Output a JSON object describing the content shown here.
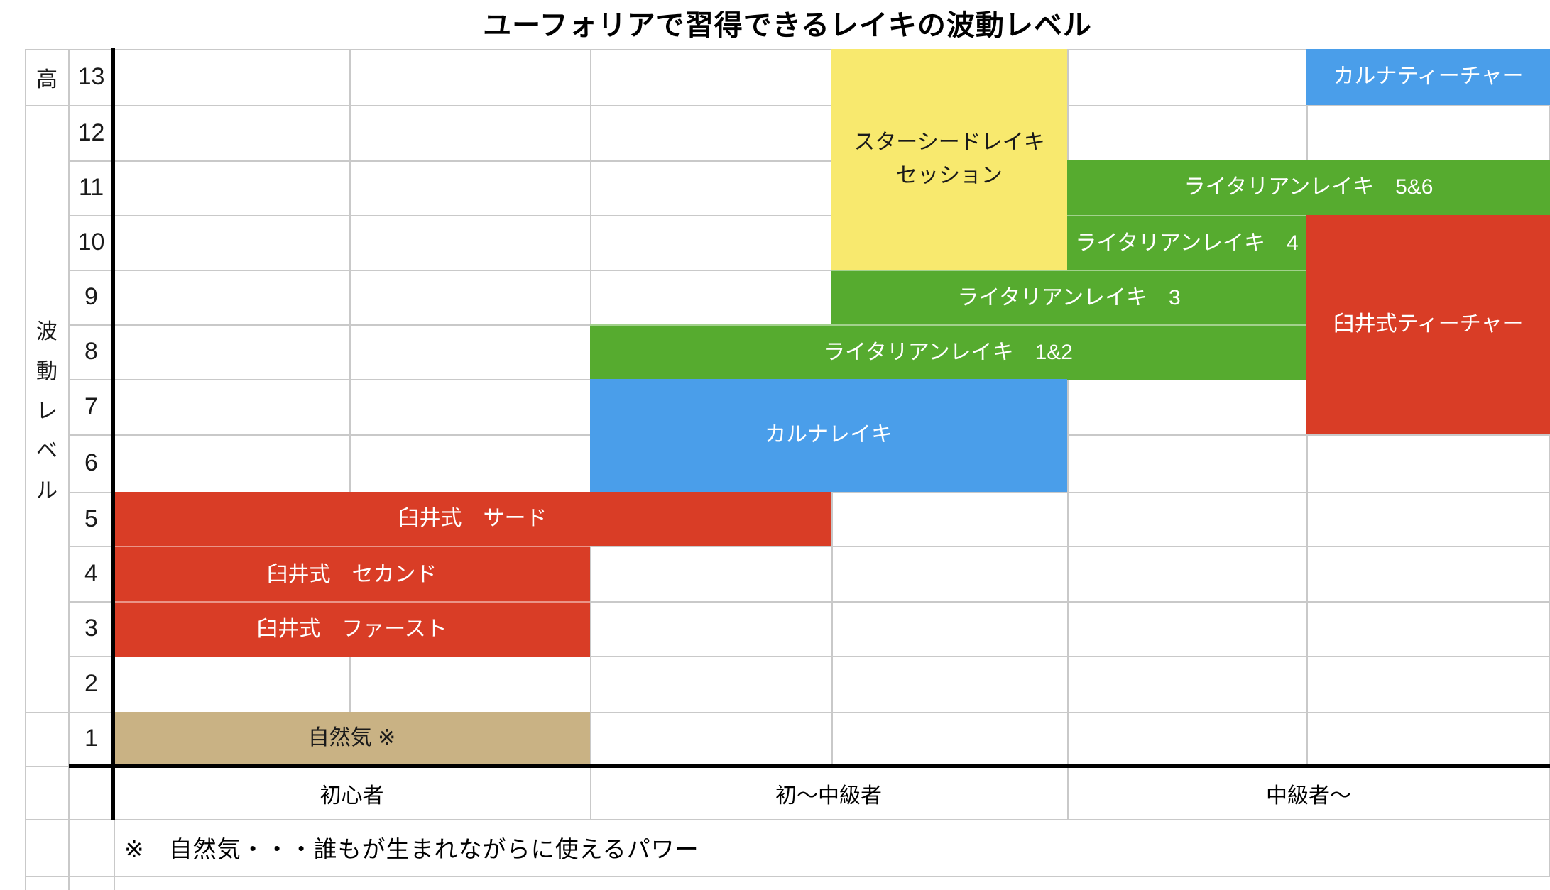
{
  "title": "ユーフォリアで習得できるレイキの波動レベル",
  "y_axis": {
    "top_label": "高",
    "axis_label": "波動レベル",
    "levels": [
      13,
      12,
      11,
      10,
      9,
      8,
      7,
      6,
      5,
      4,
      3,
      2,
      1
    ]
  },
  "x_axis": {
    "labels": [
      {
        "name": "x-label-beginner",
        "label": "初心者",
        "columns": [
          1,
          2
        ]
      },
      {
        "name": "x-label-beginner-intermediate",
        "label": "初〜中級者",
        "columns": [
          3,
          4
        ]
      },
      {
        "name": "x-label-intermediate-plus",
        "label": "中級者〜",
        "columns": [
          5,
          6
        ]
      }
    ]
  },
  "footnote": "※　自然気・・・誰もが生まれながらに使えるパワー",
  "colors": {
    "red": "#d93d26",
    "green": "#56ab2f",
    "blue": "#4a9eea",
    "yellow": "#f8e96e",
    "tan": "#c9b284",
    "grid": "#c9c9c9",
    "axis": "#000000",
    "block_separator": "rgba(255,255,255,0.45)"
  },
  "chart_data": {
    "type": "bar",
    "subtype": "merged-cell level span chart (gantt-like)",
    "title": "ユーフォリアで習得できるレイキの波動レベル",
    "ylabel": "波動レベル",
    "ylim": [
      1,
      13
    ],
    "grid": true,
    "x_categories": [
      "初心者",
      "初〜中級者",
      "中級者〜"
    ],
    "x_category_column_spans": [
      [
        1,
        2
      ],
      [
        3,
        4
      ],
      [
        5,
        6
      ]
    ],
    "items": [
      {
        "name": "karuna-teacher-block",
        "label": "カルナティーチャー",
        "levels": [
          13,
          13
        ],
        "columns": [
          6,
          6
        ],
        "color": "blue",
        "text_color": "#ffffff"
      },
      {
        "name": "starseed-reiki-session-block",
        "label": "スターシードレイキ\nセッション",
        "levels": [
          10,
          13
        ],
        "columns": [
          4,
          4
        ],
        "color": "yellow",
        "text_color": "#1a1a1a"
      },
      {
        "name": "lightarian-reiki-5-6-block",
        "label": "ライタリアンレイキ　5&6",
        "levels": [
          11,
          11
        ],
        "columns": [
          5,
          6
        ],
        "color": "green",
        "text_color": "#ffffff"
      },
      {
        "name": "lightarian-reiki-4-block",
        "label": "ライタリアンレイキ　4",
        "levels": [
          10,
          10
        ],
        "columns": [
          5,
          5
        ],
        "color": "green",
        "text_color": "#ffffff",
        "separator_top": true
      },
      {
        "name": "usui-teacher-block",
        "label": "臼井式ティーチャー",
        "levels": [
          7,
          10
        ],
        "columns": [
          6,
          6
        ],
        "color": "red",
        "text_color": "#ffffff"
      },
      {
        "name": "lightarian-reiki-3-block",
        "label": "ライタリアンレイキ　3",
        "levels": [
          9,
          9
        ],
        "columns": [
          4,
          5
        ],
        "color": "green",
        "text_color": "#ffffff",
        "separator_top": true
      },
      {
        "name": "lightarian-reiki-1-2-block",
        "label": "ライタリアンレイキ　1&2",
        "levels": [
          8,
          8
        ],
        "columns": [
          3,
          5
        ],
        "color": "green",
        "text_color": "#ffffff",
        "separator_top": true
      },
      {
        "name": "karuna-reiki-block",
        "label": "カルナレイキ",
        "levels": [
          6,
          7
        ],
        "columns": [
          3,
          4
        ],
        "color": "blue",
        "text_color": "#ffffff"
      },
      {
        "name": "usui-third-block",
        "label": "臼井式　サード",
        "levels": [
          5,
          5
        ],
        "columns": [
          1,
          3
        ],
        "color": "red",
        "text_color": "#ffffff"
      },
      {
        "name": "usui-second-block",
        "label": "臼井式　セカンド",
        "levels": [
          4,
          4
        ],
        "columns": [
          1,
          2
        ],
        "color": "red",
        "text_color": "#ffffff",
        "separator_top": true
      },
      {
        "name": "usui-first-block",
        "label": "臼井式　ファースト",
        "levels": [
          3,
          3
        ],
        "columns": [
          1,
          2
        ],
        "color": "red",
        "text_color": "#ffffff",
        "separator_top": true
      },
      {
        "name": "shizenki-block",
        "label": "自然気 ※",
        "levels": [
          1,
          1
        ],
        "columns": [
          1,
          2
        ],
        "color": "tan",
        "text_color": "#1a1a1a"
      }
    ]
  }
}
